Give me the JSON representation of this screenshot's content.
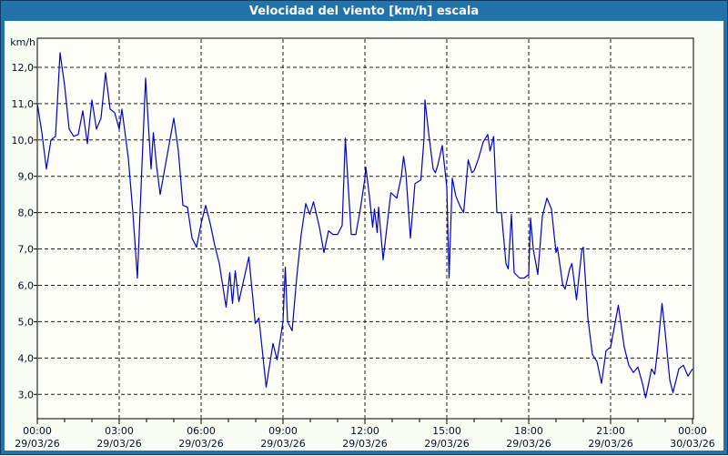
{
  "window": {
    "title": "Velocidad del viento [km/h] escala"
  },
  "colors": {
    "frame_blue": "#2173a9",
    "frame_outline": "#0c3c63",
    "content_background": "#f9fcf3",
    "plot_background": "#fdfef8",
    "plot_border": "#000000",
    "grid": "#1a1a1a",
    "line": "#0000cc",
    "label_text": "#00122b",
    "title_text": "#ffffff"
  },
  "chart_data": {
    "type": "line",
    "title": "Velocidad del viento [km/h] escala",
    "ylabel": "km/h",
    "xlabel": "",
    "grid": "dashed horizontal at each km/h unit, dashed vertical every 3 hours",
    "legend": "none",
    "ylim": [
      2.33,
      12.8
    ],
    "xlim_minutes": [
      0,
      1440
    ],
    "y_ticks": [
      {
        "value": 12,
        "label": "12,0"
      },
      {
        "value": 11,
        "label": "11,0"
      },
      {
        "value": 10,
        "label": "10,0"
      },
      {
        "value": 9,
        "label": "9,0"
      },
      {
        "value": 8,
        "label": "8,0"
      },
      {
        "value": 7,
        "label": "7,0"
      },
      {
        "value": 6,
        "label": "6,0"
      },
      {
        "value": 5,
        "label": "5,0"
      },
      {
        "value": 4,
        "label": "4,0"
      },
      {
        "value": 3,
        "label": "3,0"
      }
    ],
    "x_ticks": [
      {
        "hour": 0,
        "time": "00:00",
        "date": "29/03/26"
      },
      {
        "hour": 3,
        "time": "03:00",
        "date": "29/03/26"
      },
      {
        "hour": 6,
        "time": "06:00",
        "date": "29/03/26"
      },
      {
        "hour": 9,
        "time": "09:00",
        "date": "29/03/26"
      },
      {
        "hour": 12,
        "time": "12:00",
        "date": "29/03/26"
      },
      {
        "hour": 15,
        "time": "15:00",
        "date": "29/03/26"
      },
      {
        "hour": 18,
        "time": "18:00",
        "date": "29/03/26"
      },
      {
        "hour": 21,
        "time": "21:00",
        "date": "29/03/26"
      },
      {
        "hour": 24,
        "time": "00:00",
        "date": "30/03/26"
      }
    ],
    "minor_tick_interval_hours": 1,
    "series": [
      {
        "name": "velocidad_viento_kmh",
        "color": "#0000cc",
        "points_minutes_kmh": [
          [
            0,
            11.0
          ],
          [
            10,
            10.2
          ],
          [
            20,
            9.2
          ],
          [
            30,
            10.0
          ],
          [
            40,
            10.1
          ],
          [
            50,
            12.4
          ],
          [
            60,
            11.5
          ],
          [
            70,
            10.3
          ],
          [
            80,
            10.1
          ],
          [
            90,
            10.15
          ],
          [
            100,
            10.8
          ],
          [
            110,
            9.9
          ],
          [
            120,
            11.1
          ],
          [
            130,
            10.3
          ],
          [
            140,
            10.6
          ],
          [
            150,
            11.85
          ],
          [
            160,
            10.85
          ],
          [
            170,
            10.75
          ],
          [
            180,
            10.3
          ],
          [
            186,
            10.85
          ],
          [
            200,
            9.5
          ],
          [
            210,
            8.0
          ],
          [
            220,
            6.2
          ],
          [
            230,
            9.3
          ],
          [
            238,
            11.7
          ],
          [
            250,
            9.2
          ],
          [
            255,
            10.2
          ],
          [
            262,
            9.3
          ],
          [
            270,
            8.5
          ],
          [
            280,
            9.2
          ],
          [
            290,
            9.9
          ],
          [
            300,
            10.6
          ],
          [
            310,
            9.7
          ],
          [
            320,
            8.2
          ],
          [
            330,
            8.15
          ],
          [
            340,
            7.3
          ],
          [
            350,
            7.05
          ],
          [
            360,
            7.7
          ],
          [
            370,
            8.2
          ],
          [
            380,
            7.7
          ],
          [
            390,
            7.1
          ],
          [
            400,
            6.6
          ],
          [
            410,
            5.8
          ],
          [
            415,
            5.4
          ],
          [
            423,
            6.35
          ],
          [
            429,
            5.5
          ],
          [
            435,
            6.4
          ],
          [
            443,
            5.55
          ],
          [
            465,
            6.78
          ],
          [
            479,
            4.95
          ],
          [
            487,
            5.1
          ],
          [
            503,
            3.2
          ],
          [
            518,
            4.4
          ],
          [
            527,
            3.95
          ],
          [
            540,
            5.0
          ],
          [
            545,
            6.5
          ],
          [
            550,
            5.0
          ],
          [
            560,
            4.75
          ],
          [
            570,
            6.2
          ],
          [
            580,
            7.4
          ],
          [
            590,
            8.25
          ],
          [
            599,
            7.95
          ],
          [
            607,
            8.3
          ],
          [
            620,
            7.6
          ],
          [
            630,
            6.9
          ],
          [
            640,
            7.5
          ],
          [
            650,
            7.4
          ],
          [
            660,
            7.4
          ],
          [
            670,
            7.65
          ],
          [
            677,
            10.05
          ],
          [
            683,
            8.8
          ],
          [
            690,
            7.4
          ],
          [
            700,
            7.4
          ],
          [
            710,
            8.1
          ],
          [
            720,
            8.95
          ],
          [
            722,
            9.25
          ],
          [
            730,
            8.45
          ],
          [
            737,
            7.6
          ],
          [
            741,
            8.1
          ],
          [
            747,
            7.45
          ],
          [
            750,
            8.15
          ],
          [
            760,
            6.7
          ],
          [
            777,
            8.55
          ],
          [
            790,
            8.4
          ],
          [
            800,
            9.0
          ],
          [
            805,
            9.55
          ],
          [
            810,
            9.1
          ],
          [
            820,
            7.3
          ],
          [
            830,
            8.8
          ],
          [
            843,
            8.9
          ],
          [
            850,
            10.05
          ],
          [
            852,
            11.1
          ],
          [
            860,
            10.2
          ],
          [
            870,
            9.2
          ],
          [
            875,
            9.1
          ],
          [
            880,
            9.3
          ],
          [
            890,
            9.85
          ],
          [
            900,
            8.7
          ],
          [
            905,
            6.2
          ],
          [
            912,
            8.95
          ],
          [
            920,
            8.45
          ],
          [
            930,
            8.15
          ],
          [
            937,
            8.0
          ],
          [
            947,
            9.45
          ],
          [
            955,
            9.1
          ],
          [
            960,
            9.15
          ],
          [
            970,
            9.5
          ],
          [
            980,
            9.95
          ],
          [
            990,
            10.15
          ],
          [
            995,
            9.7
          ],
          [
            1003,
            10.1
          ],
          [
            1010,
            8.0
          ],
          [
            1020,
            8.0
          ],
          [
            1030,
            6.6
          ],
          [
            1035,
            6.45
          ],
          [
            1042,
            7.95
          ],
          [
            1048,
            6.35
          ],
          [
            1060,
            6.2
          ],
          [
            1070,
            6.2
          ],
          [
            1080,
            6.3
          ],
          [
            1084,
            7.85
          ],
          [
            1090,
            7.0
          ],
          [
            1100,
            6.3
          ],
          [
            1110,
            7.9
          ],
          [
            1120,
            8.4
          ],
          [
            1130,
            8.1
          ],
          [
            1140,
            6.9
          ],
          [
            1143,
            7.05
          ],
          [
            1155,
            6.0
          ],
          [
            1160,
            5.9
          ],
          [
            1170,
            6.45
          ],
          [
            1175,
            6.6
          ],
          [
            1185,
            5.6
          ],
          [
            1197,
            7.0
          ],
          [
            1200,
            7.05
          ],
          [
            1210,
            5.1
          ],
          [
            1220,
            4.1
          ],
          [
            1230,
            3.9
          ],
          [
            1240,
            3.3
          ],
          [
            1250,
            4.2
          ],
          [
            1260,
            4.3
          ],
          [
            1277,
            5.45
          ],
          [
            1290,
            4.3
          ],
          [
            1300,
            3.8
          ],
          [
            1310,
            3.6
          ],
          [
            1320,
            3.75
          ],
          [
            1330,
            3.3
          ],
          [
            1337,
            2.9
          ],
          [
            1350,
            3.7
          ],
          [
            1357,
            3.55
          ],
          [
            1363,
            4.2
          ],
          [
            1373,
            5.5
          ],
          [
            1380,
            4.7
          ],
          [
            1390,
            3.4
          ],
          [
            1397,
            3.05
          ],
          [
            1410,
            3.7
          ],
          [
            1420,
            3.8
          ],
          [
            1430,
            3.5
          ],
          [
            1440,
            3.7
          ]
        ]
      }
    ]
  }
}
